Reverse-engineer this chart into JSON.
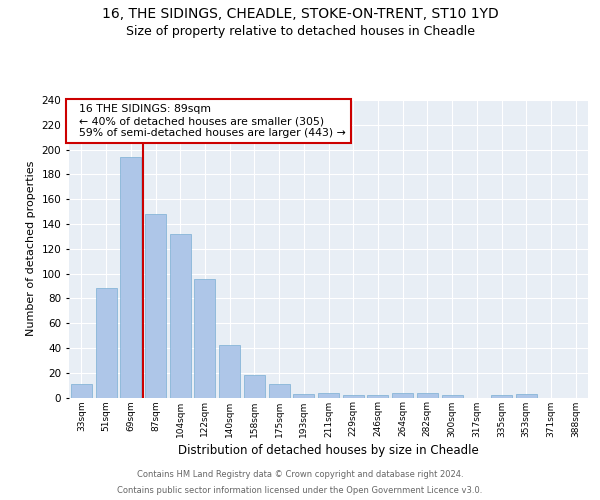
{
  "title1": "16, THE SIDINGS, CHEADLE, STOKE-ON-TRENT, ST10 1YD",
  "title2": "Size of property relative to detached houses in Cheadle",
  "xlabel": "Distribution of detached houses by size in Cheadle",
  "ylabel": "Number of detached properties",
  "categories": [
    "33sqm",
    "51sqm",
    "69sqm",
    "87sqm",
    "104sqm",
    "122sqm",
    "140sqm",
    "158sqm",
    "175sqm",
    "193sqm",
    "211sqm",
    "229sqm",
    "246sqm",
    "264sqm",
    "282sqm",
    "300sqm",
    "317sqm",
    "335sqm",
    "353sqm",
    "371sqm",
    "388sqm"
  ],
  "values": [
    11,
    88,
    194,
    148,
    132,
    96,
    42,
    18,
    11,
    3,
    4,
    2,
    2,
    4,
    4,
    2,
    0,
    2,
    3,
    0,
    0
  ],
  "bar_color": "#aec6e8",
  "bar_edge_color": "#7aafd4",
  "vline_color": "#cc0000",
  "annotation_line1": "16 THE SIDINGS: 89sqm",
  "annotation_line2": "← 40% of detached houses are smaller (305)",
  "annotation_line3": "59% of semi-detached houses are larger (443) →",
  "annotation_box_color": "#cc0000",
  "ylim": [
    0,
    240
  ],
  "yticks": [
    0,
    20,
    40,
    60,
    80,
    100,
    120,
    140,
    160,
    180,
    200,
    220,
    240
  ],
  "footer1": "Contains HM Land Registry data © Crown copyright and database right 2024.",
  "footer2": "Contains public sector information licensed under the Open Government Licence v3.0.",
  "bg_color": "#e8eef5",
  "title_fontsize": 10,
  "subtitle_fontsize": 9
}
